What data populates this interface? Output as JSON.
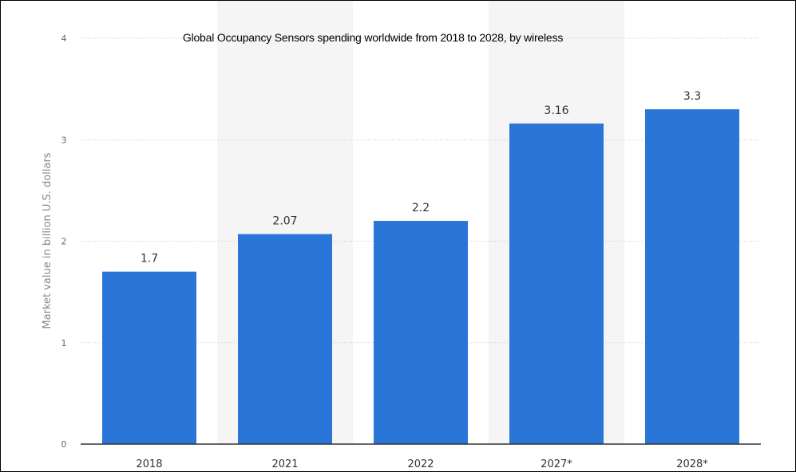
{
  "chart_data": {
    "type": "bar",
    "title": "Global Occupancy Sensors spending worldwide from 2018 to 2028, by wireless",
    "xlabel": "",
    "ylabel": "Market value in billion U.S. dollars",
    "categories": [
      "2018",
      "2021",
      "2022",
      "2027*",
      "2028*"
    ],
    "values": [
      1.7,
      2.07,
      2.2,
      3.16,
      3.3
    ],
    "value_labels": [
      "1.7",
      "2.07",
      "2.2",
      "3.16",
      "3.3"
    ],
    "yticks": [
      "0",
      "1",
      "2",
      "3",
      "4"
    ],
    "ylim": [
      0,
      4
    ],
    "grid": true,
    "legend": "none",
    "colors": {
      "bar": "#2a75d8",
      "grid": "#cccccc",
      "axis": "#333333",
      "band": "#f5f5f5"
    }
  }
}
